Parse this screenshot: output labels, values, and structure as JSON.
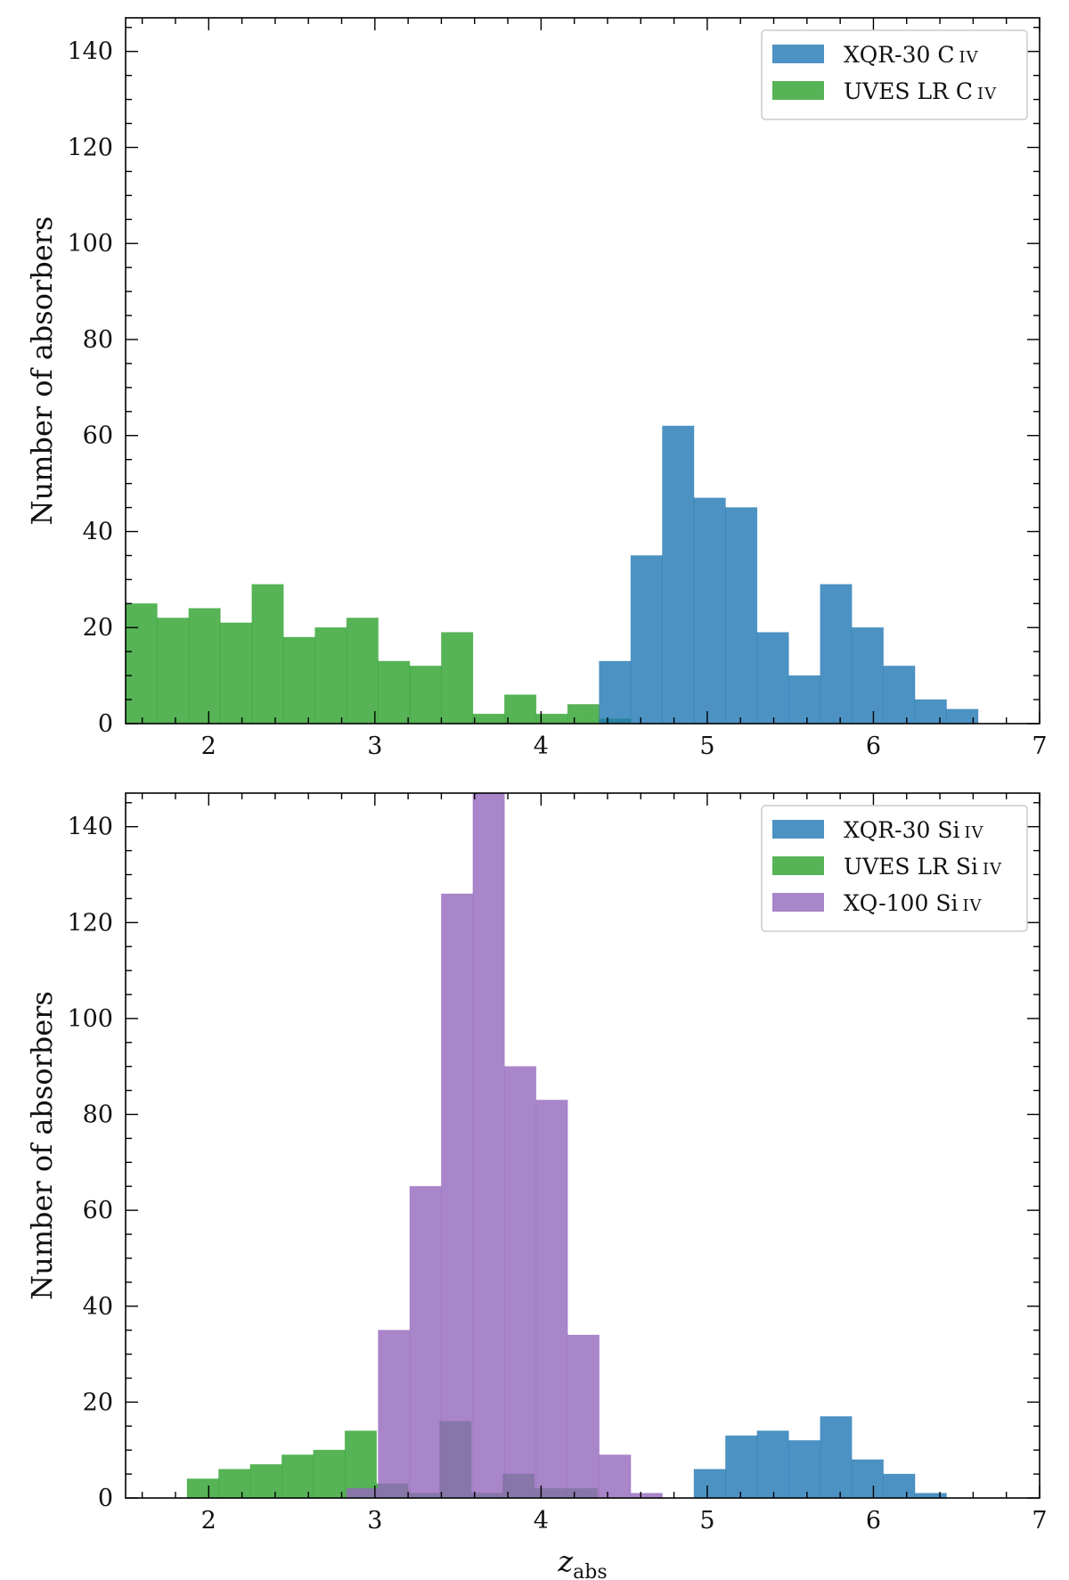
{
  "chart_data": [
    {
      "type": "bar",
      "id": "top",
      "title": "",
      "xlabel": "z",
      "xlabel_sub": "abs",
      "ylabel": "Number of absorbers",
      "xlim": [
        1.5,
        7
      ],
      "ylim": [
        0,
        147
      ],
      "xticks": [
        2,
        3,
        4,
        5,
        6,
        7
      ],
      "yticks": [
        0,
        20,
        40,
        60,
        80,
        100,
        120,
        140
      ],
      "show_xlabel": false,
      "series": [
        {
          "name": "UVES LR",
          "ion_main": "C",
          "ion_small": "IV",
          "color": "#2ca02c",
          "opacity": 0.8,
          "bin_edges": [
            1.5,
            1.69,
            1.88,
            2.07,
            2.26,
            2.45,
            2.64,
            2.83,
            3.02,
            3.21,
            3.4,
            3.59,
            3.78,
            3.97,
            4.16,
            4.35,
            4.54
          ],
          "counts": [
            25,
            22,
            24,
            21,
            29,
            18,
            20,
            22,
            13,
            12,
            19,
            2,
            6,
            2,
            4,
            1
          ]
        },
        {
          "name": "XQR-30",
          "ion_main": "C",
          "ion_small": "IV",
          "color": "#1f77b4",
          "opacity": 0.8,
          "bin_edges": [
            4.35,
            4.54,
            4.73,
            4.92,
            5.11,
            5.3,
            5.49,
            5.68,
            5.87,
            6.06,
            6.25,
            6.44,
            6.63
          ],
          "counts": [
            13,
            35,
            62,
            47,
            45,
            19,
            10,
            29,
            20,
            12,
            5,
            3
          ]
        }
      ],
      "legend_order": [
        1,
        0
      ],
      "legend": "top-right"
    },
    {
      "type": "bar",
      "id": "bottom",
      "title": "",
      "xlabel": "z",
      "xlabel_sub": "abs",
      "ylabel": "Number of absorbers",
      "xlim": [
        1.5,
        7
      ],
      "ylim": [
        0,
        147
      ],
      "xticks": [
        2,
        3,
        4,
        5,
        6,
        7
      ],
      "yticks": [
        0,
        20,
        40,
        60,
        80,
        100,
        120,
        140
      ],
      "show_xlabel": true,
      "series": [
        {
          "name": "UVES LR",
          "ion_main": "Si",
          "ion_small": "IV",
          "color": "#2ca02c",
          "opacity": 0.8,
          "bin_edges": [
            1.87,
            2.06,
            2.25,
            2.44,
            2.63,
            2.82,
            3.01,
            3.2,
            3.39,
            3.58,
            3.77,
            3.96,
            4.15,
            4.34
          ],
          "counts": [
            4,
            6,
            7,
            9,
            10,
            14,
            3,
            1,
            16,
            1,
            5,
            2,
            2
          ]
        },
        {
          "name": "XQ-100",
          "ion_main": "Si",
          "ion_small": "IV",
          "color": "#9467bd",
          "opacity": 0.8,
          "bin_edges": [
            2.83,
            3.02,
            3.21,
            3.4,
            3.59,
            3.78,
            3.97,
            4.16,
            4.35,
            4.54,
            4.73
          ],
          "counts": [
            2,
            35,
            65,
            126,
            147,
            90,
            83,
            34,
            9,
            1
          ]
        },
        {
          "name": "XQR-30",
          "ion_main": "Si",
          "ion_small": "IV",
          "color": "#1f77b4",
          "opacity": 0.8,
          "bin_edges": [
            4.92,
            5.11,
            5.3,
            5.49,
            5.68,
            5.87,
            6.06,
            6.25,
            6.44
          ],
          "counts": [
            6,
            13,
            14,
            12,
            17,
            8,
            5,
            1
          ]
        }
      ],
      "legend_order": [
        2,
        0,
        1
      ],
      "legend": "top-right"
    }
  ]
}
